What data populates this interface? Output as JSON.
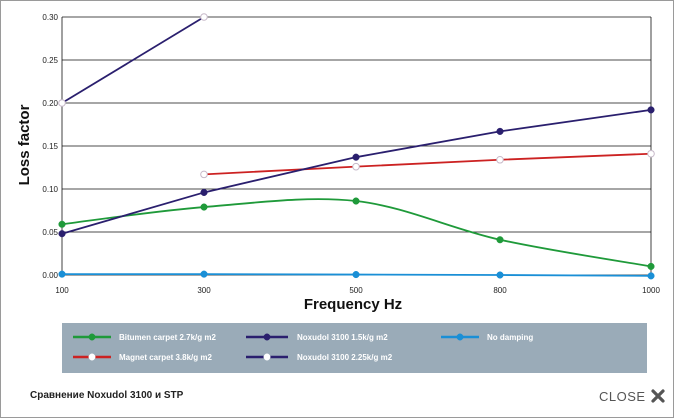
{
  "caption": "Сравнение Noxudol 3100 и STP",
  "close_label": "CLOSE",
  "chart_data": {
    "type": "line",
    "xlabel": "Frequency Hz",
    "ylabel": "Loss factor",
    "x_ticks": [
      100,
      300,
      500,
      800,
      1000
    ],
    "y_ticks": [
      "0.00",
      "0.05",
      "0.10",
      "0.15",
      "0.20",
      "0.25",
      "0.30"
    ],
    "ylim": [
      0,
      0.3
    ],
    "grid": "horizontal",
    "legend_position": "bottom",
    "series": [
      {
        "name": "Bitumen carpet 2.7k/g m2",
        "color": "#1f9a3a",
        "marker": "filled",
        "smooth": true,
        "points": [
          [
            100,
            0.059
          ],
          [
            300,
            0.079
          ],
          [
            500,
            0.086
          ],
          [
            800,
            0.041
          ],
          [
            1000,
            0.01
          ]
        ]
      },
      {
        "name": "Magnet carpet 3.8k/g m2",
        "color": "#cc2222",
        "marker": "hollow",
        "smooth": false,
        "points": [
          [
            300,
            0.117
          ],
          [
            500,
            0.126
          ],
          [
            800,
            0.134
          ],
          [
            1000,
            0.141
          ]
        ]
      },
      {
        "name": "Noxudol 3100  1.5k/g m2",
        "color": "#2a1f6e",
        "marker": "filled",
        "smooth": false,
        "points": [
          [
            100,
            0.048
          ],
          [
            300,
            0.096
          ],
          [
            500,
            0.137
          ],
          [
            800,
            0.167
          ],
          [
            1000,
            0.192
          ]
        ]
      },
      {
        "name": "Noxudol 3100  2.25k/g m2",
        "color": "#2a1f6e",
        "marker": "hollow",
        "smooth": false,
        "points": [
          [
            100,
            0.2
          ],
          [
            300,
            0.3
          ]
        ]
      },
      {
        "name": "No damping",
        "color": "#1a8fd6",
        "marker": "filled",
        "smooth": false,
        "points": [
          [
            100,
            0.001
          ],
          [
            300,
            0.001
          ],
          [
            500,
            0.0005
          ],
          [
            800,
            0.0
          ],
          [
            1000,
            -0.001
          ]
        ]
      }
    ],
    "colors": {
      "legend_bg": "#9aabb8",
      "grid": "#111111"
    }
  }
}
